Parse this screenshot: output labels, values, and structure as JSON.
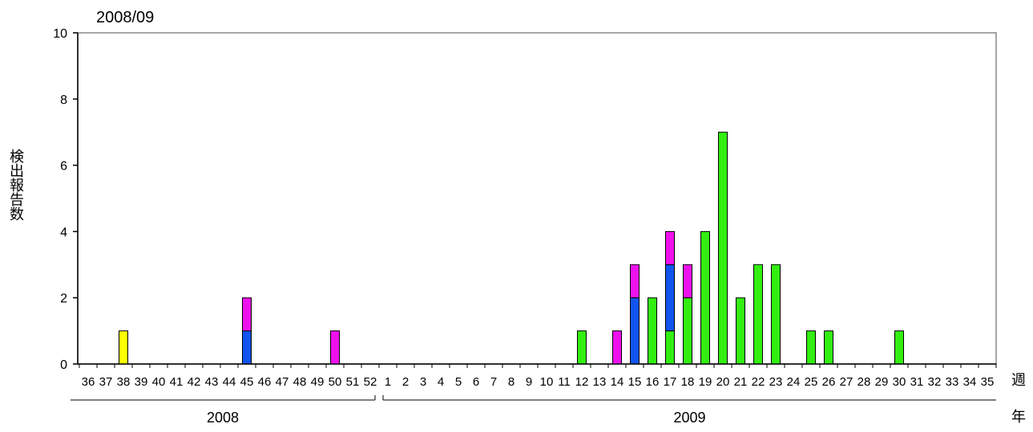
{
  "chart_data": {
    "type": "bar",
    "stacked": true,
    "title": "2008/09",
    "ylabel": "検出報告数",
    "xlabel": "週",
    "year_axis_label": "年",
    "ylim": [
      0,
      10
    ],
    "yticks": [
      0,
      2,
      4,
      6,
      8,
      10
    ],
    "grid": false,
    "legend": "none",
    "categories": [
      "36",
      "37",
      "38",
      "39",
      "40",
      "41",
      "42",
      "43",
      "44",
      "45",
      "46",
      "47",
      "48",
      "49",
      "50",
      "51",
      "52",
      "1",
      "2",
      "3",
      "4",
      "5",
      "6",
      "7",
      "8",
      "9",
      "10",
      "11",
      "12",
      "13",
      "14",
      "15",
      "16",
      "17",
      "18",
      "19",
      "20",
      "21",
      "22",
      "23",
      "24",
      "25",
      "26",
      "27",
      "28",
      "29",
      "30",
      "31",
      "32",
      "33",
      "34",
      "35"
    ],
    "year_groups": [
      {
        "label": "2008",
        "from": 0,
        "to": 16
      },
      {
        "label": "2009",
        "from": 17,
        "to": 51
      }
    ],
    "series": [
      {
        "color": "#33ee11",
        "values": [
          0,
          0,
          0,
          0,
          0,
          0,
          0,
          0,
          0,
          0,
          0,
          0,
          0,
          0,
          0,
          0,
          0,
          0,
          0,
          0,
          0,
          0,
          0,
          0,
          0,
          0,
          0,
          0,
          1,
          0,
          0,
          0,
          2,
          1,
          2,
          4,
          7,
          2,
          3,
          3,
          0,
          1,
          1,
          0,
          0,
          0,
          1,
          0,
          0,
          0,
          0,
          0
        ]
      },
      {
        "color": "#1155ee",
        "values": [
          0,
          0,
          0,
          0,
          0,
          0,
          0,
          0,
          0,
          1,
          0,
          0,
          0,
          0,
          0,
          0,
          0,
          0,
          0,
          0,
          0,
          0,
          0,
          0,
          0,
          0,
          0,
          0,
          0,
          0,
          0,
          2,
          0,
          2,
          0,
          0,
          0,
          0,
          0,
          0,
          0,
          0,
          0,
          0,
          0,
          0,
          0,
          0,
          0,
          0,
          0,
          0
        ]
      },
      {
        "color": "#ee11ee",
        "values": [
          0,
          0,
          0,
          0,
          0,
          0,
          0,
          0,
          0,
          1,
          0,
          0,
          0,
          0,
          1,
          0,
          0,
          0,
          0,
          0,
          0,
          0,
          0,
          0,
          0,
          0,
          0,
          0,
          0,
          0,
          1,
          1,
          0,
          1,
          1,
          0,
          0,
          0,
          0,
          0,
          0,
          0,
          0,
          0,
          0,
          0,
          0,
          0,
          0,
          0,
          0,
          0
        ]
      },
      {
        "color": "#ffff00",
        "values": [
          0,
          0,
          1,
          0,
          0,
          0,
          0,
          0,
          0,
          0,
          0,
          0,
          0,
          0,
          0,
          0,
          0,
          0,
          0,
          0,
          0,
          0,
          0,
          0,
          0,
          0,
          0,
          0,
          0,
          0,
          0,
          0,
          0,
          0,
          0,
          0,
          0,
          0,
          0,
          0,
          0,
          0,
          0,
          0,
          0,
          0,
          0,
          0,
          0,
          0,
          0,
          0
        ]
      }
    ]
  }
}
